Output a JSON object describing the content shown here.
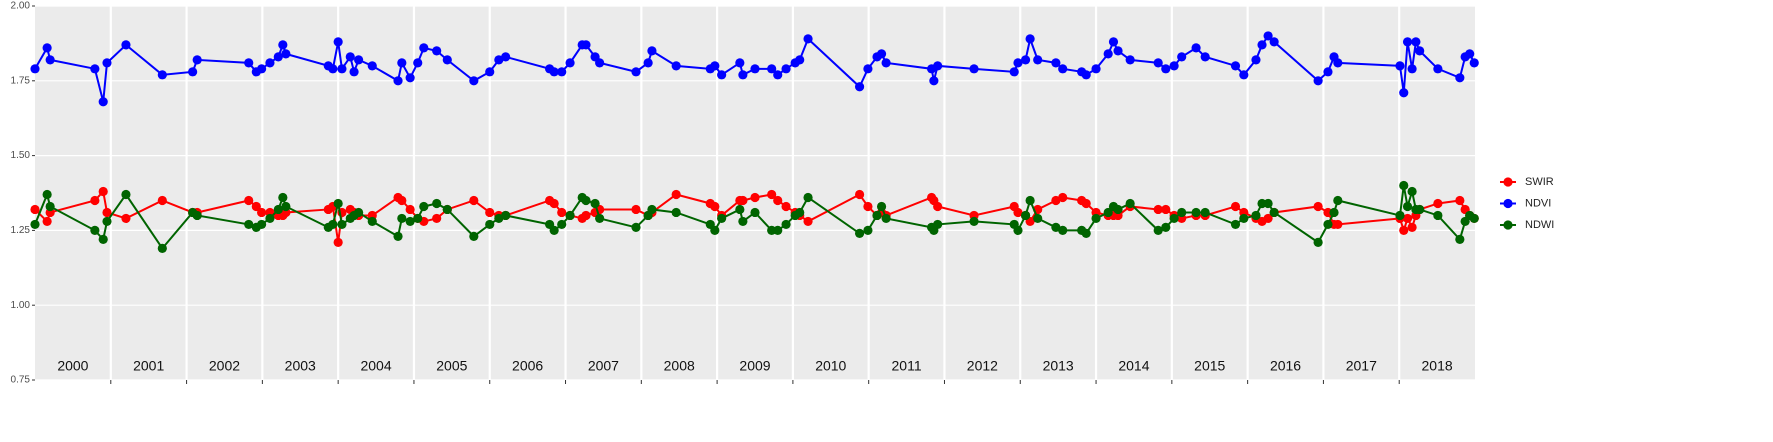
{
  "chart_data": {
    "type": "line",
    "x": [
      2000,
      2000.16,
      2000.2,
      2000.79,
      2000.9,
      2000.95,
      2001.2,
      2001.68,
      2002.08,
      2002.14,
      2002.82,
      2002.92,
      2002.99,
      2003.1,
      2003.21,
      2003.27,
      2003.31,
      2003.87,
      2003.93,
      2004,
      2004.05,
      2004.16,
      2004.21,
      2004.27,
      2004.45,
      2004.79,
      2004.84,
      2004.95,
      2005.05,
      2005.13,
      2005.3,
      2005.44,
      2005.79,
      2006,
      2006.12,
      2006.21,
      2006.79,
      2006.85,
      2006.95,
      2007.06,
      2007.22,
      2007.27,
      2007.39,
      2007.45,
      2007.93,
      2008.09,
      2008.14,
      2008.46,
      2008.91,
      2008.97,
      2009.06,
      2009.3,
      2009.34,
      2009.5,
      2009.72,
      2009.8,
      2009.91,
      2010.03,
      2010.09,
      2010.2,
      2010.88,
      2010.99,
      2011.11,
      2011.17,
      2011.23,
      2011.83,
      2011.86,
      2011.91,
      2012.39,
      2012.92,
      2012.97,
      2013.07,
      2013.13,
      2013.23,
      2013.47,
      2013.56,
      2013.81,
      2013.87,
      2014,
      2014.16,
      2014.23,
      2014.29,
      2014.45,
      2014.82,
      2014.92,
      2015.03,
      2015.13,
      2015.32,
      2015.44,
      2015.84,
      2015.95,
      2016.11,
      2016.19,
      2016.27,
      2016.35,
      2016.93,
      2017.06,
      2017.14,
      2017.19,
      2018.01,
      2018.06,
      2018.11,
      2018.17,
      2018.22,
      2018.27,
      2018.51,
      2018.8,
      2018.87,
      2018.93,
      2018.99
    ],
    "series": [
      {
        "name": "SWIR",
        "color": "#ff0000",
        "values": [
          1.32,
          1.28,
          1.31,
          1.35,
          1.38,
          1.31,
          1.29,
          1.35,
          1.31,
          1.31,
          1.35,
          1.33,
          1.31,
          1.31,
          1.3,
          1.3,
          1.31,
          1.32,
          1.33,
          1.21,
          1.31,
          1.32,
          1.31,
          1.3,
          1.3,
          1.36,
          1.35,
          1.32,
          1.29,
          1.28,
          1.29,
          1.32,
          1.35,
          1.31,
          1.3,
          1.3,
          1.35,
          1.34,
          1.31,
          1.3,
          1.29,
          1.3,
          1.31,
          1.32,
          1.32,
          1.3,
          1.31,
          1.37,
          1.34,
          1.33,
          1.3,
          1.35,
          1.35,
          1.36,
          1.37,
          1.35,
          1.33,
          1.31,
          1.3,
          1.28,
          1.37,
          1.33,
          1.3,
          1.31,
          1.3,
          1.36,
          1.35,
          1.33,
          1.3,
          1.33,
          1.31,
          1.3,
          1.28,
          1.32,
          1.35,
          1.36,
          1.35,
          1.34,
          1.31,
          1.3,
          1.3,
          1.3,
          1.33,
          1.32,
          1.32,
          1.3,
          1.29,
          1.3,
          1.3,
          1.33,
          1.31,
          1.29,
          1.28,
          1.29,
          1.31,
          1.33,
          1.31,
          1.27,
          1.27,
          1.29,
          1.25,
          1.29,
          1.26,
          1.3,
          1.32,
          1.34,
          1.35,
          1.32,
          1.3,
          1.29
        ]
      },
      {
        "name": "NDVI",
        "color": "#0000ff",
        "values": [
          1.79,
          1.86,
          1.82,
          1.79,
          1.68,
          1.81,
          1.87,
          1.77,
          1.78,
          1.82,
          1.81,
          1.78,
          1.79,
          1.81,
          1.83,
          1.87,
          1.84,
          1.8,
          1.79,
          1.88,
          1.79,
          1.83,
          1.78,
          1.82,
          1.8,
          1.75,
          1.81,
          1.76,
          1.81,
          1.86,
          1.85,
          1.82,
          1.75,
          1.78,
          1.82,
          1.83,
          1.79,
          1.78,
          1.78,
          1.81,
          1.87,
          1.87,
          1.83,
          1.81,
          1.78,
          1.81,
          1.85,
          1.8,
          1.79,
          1.8,
          1.77,
          1.81,
          1.77,
          1.79,
          1.79,
          1.77,
          1.79,
          1.81,
          1.82,
          1.89,
          1.73,
          1.79,
          1.83,
          1.84,
          1.81,
          1.79,
          1.75,
          1.8,
          1.79,
          1.78,
          1.81,
          1.82,
          1.89,
          1.82,
          1.81,
          1.79,
          1.78,
          1.77,
          1.79,
          1.84,
          1.88,
          1.85,
          1.82,
          1.81,
          1.79,
          1.8,
          1.83,
          1.86,
          1.83,
          1.8,
          1.77,
          1.82,
          1.87,
          1.9,
          1.88,
          1.75,
          1.78,
          1.83,
          1.81,
          1.8,
          1.71,
          1.88,
          1.79,
          1.88,
          1.85,
          1.79,
          1.76,
          1.83,
          1.84,
          1.81
        ]
      },
      {
        "name": "NDWI",
        "color": "#006400",
        "values": [
          1.27,
          1.37,
          1.33,
          1.25,
          1.22,
          1.28,
          1.37,
          1.19,
          1.31,
          1.3,
          1.27,
          1.26,
          1.27,
          1.29,
          1.32,
          1.36,
          1.33,
          1.26,
          1.27,
          1.34,
          1.27,
          1.29,
          1.3,
          1.31,
          1.28,
          1.23,
          1.29,
          1.28,
          1.29,
          1.33,
          1.34,
          1.32,
          1.23,
          1.27,
          1.29,
          1.3,
          1.27,
          1.25,
          1.27,
          1.3,
          1.36,
          1.35,
          1.34,
          1.29,
          1.26,
          1.3,
          1.32,
          1.31,
          1.27,
          1.25,
          1.29,
          1.32,
          1.28,
          1.31,
          1.25,
          1.25,
          1.27,
          1.3,
          1.31,
          1.36,
          1.24,
          1.25,
          1.3,
          1.33,
          1.29,
          1.26,
          1.25,
          1.27,
          1.28,
          1.27,
          1.25,
          1.3,
          1.35,
          1.29,
          1.26,
          1.25,
          1.25,
          1.24,
          1.29,
          1.31,
          1.33,
          1.32,
          1.34,
          1.25,
          1.26,
          1.29,
          1.31,
          1.31,
          1.31,
          1.27,
          1.29,
          1.3,
          1.34,
          1.34,
          1.31,
          1.21,
          1.27,
          1.31,
          1.35,
          1.3,
          1.4,
          1.33,
          1.38,
          1.32,
          1.32,
          1.3,
          1.22,
          1.28,
          1.3,
          1.29
        ]
      }
    ],
    "xlim": [
      2000,
      2019
    ],
    "xticks": [
      2001,
      2002,
      2003,
      2004,
      2005,
      2006,
      2007,
      2008,
      2009,
      2010,
      2011,
      2012,
      2013,
      2014,
      2015,
      2016,
      2017,
      2018
    ],
    "year_labels": [
      2000,
      2001,
      2002,
      2003,
      2004,
      2005,
      2006,
      2007,
      2008,
      2009,
      2010,
      2011,
      2012,
      2013,
      2014,
      2015,
      2016,
      2017,
      2018
    ],
    "ylim": [
      0.75,
      2.0
    ],
    "yticks": [
      0.75,
      {
        "value": 1.0,
        "label": "1.00"
      },
      1.25,
      {
        "value": 1.5,
        "label": "1.50"
      },
      1.75,
      {
        "value": 2.0,
        "label": "2.00"
      }
    ],
    "grid": true,
    "legend": "right"
  }
}
